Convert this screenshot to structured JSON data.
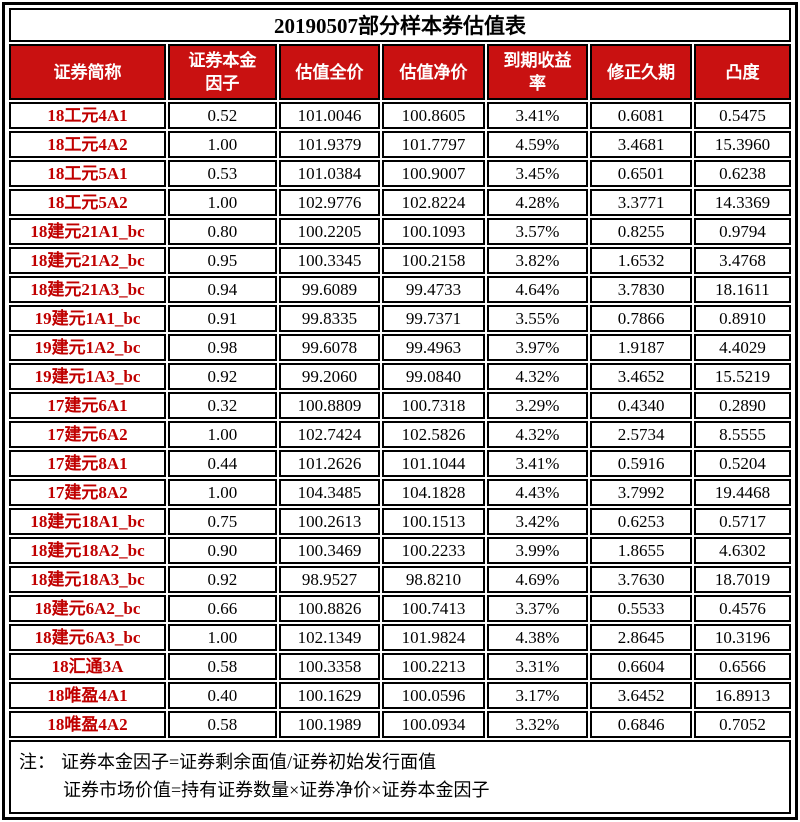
{
  "title": "20190507部分样本券估值表",
  "table": {
    "headers": [
      "证券简称",
      "证券本金\n因子",
      "估值全价",
      "估值净价",
      "到期收益\n率",
      "修正久期",
      "凸度"
    ],
    "rows": [
      [
        "18工元4A1",
        "0.52",
        "101.0046",
        "100.8605",
        "3.41%",
        "0.6081",
        "0.5475"
      ],
      [
        "18工元4A2",
        "1.00",
        "101.9379",
        "101.7797",
        "4.59%",
        "3.4681",
        "15.3960"
      ],
      [
        "18工元5A1",
        "0.53",
        "101.0384",
        "100.9007",
        "3.45%",
        "0.6501",
        "0.6238"
      ],
      [
        "18工元5A2",
        "1.00",
        "102.9776",
        "102.8224",
        "4.28%",
        "3.3771",
        "14.3369"
      ],
      [
        "18建元21A1_bc",
        "0.80",
        "100.2205",
        "100.1093",
        "3.57%",
        "0.8255",
        "0.9794"
      ],
      [
        "18建元21A2_bc",
        "0.95",
        "100.3345",
        "100.2158",
        "3.82%",
        "1.6532",
        "3.4768"
      ],
      [
        "18建元21A3_bc",
        "0.94",
        "99.6089",
        "99.4733",
        "4.64%",
        "3.7830",
        "18.1611"
      ],
      [
        "19建元1A1_bc",
        "0.91",
        "99.8335",
        "99.7371",
        "3.55%",
        "0.7866",
        "0.8910"
      ],
      [
        "19建元1A2_bc",
        "0.98",
        "99.6078",
        "99.4963",
        "3.97%",
        "1.9187",
        "4.4029"
      ],
      [
        "19建元1A3_bc",
        "0.92",
        "99.2060",
        "99.0840",
        "4.32%",
        "3.4652",
        "15.5219"
      ],
      [
        "17建元6A1",
        "0.32",
        "100.8809",
        "100.7318",
        "3.29%",
        "0.4340",
        "0.2890"
      ],
      [
        "17建元6A2",
        "1.00",
        "102.7424",
        "102.5826",
        "4.32%",
        "2.5734",
        "8.5555"
      ],
      [
        "17建元8A1",
        "0.44",
        "101.2626",
        "101.1044",
        "3.41%",
        "0.5916",
        "0.5204"
      ],
      [
        "17建元8A2",
        "1.00",
        "104.3485",
        "104.1828",
        "4.43%",
        "3.7992",
        "19.4468"
      ],
      [
        "18建元18A1_bc",
        "0.75",
        "100.2613",
        "100.1513",
        "3.42%",
        "0.6253",
        "0.5717"
      ],
      [
        "18建元18A2_bc",
        "0.90",
        "100.3469",
        "100.2233",
        "3.99%",
        "1.8655",
        "4.6302"
      ],
      [
        "18建元18A3_bc",
        "0.92",
        "98.9527",
        "98.8210",
        "4.69%",
        "3.7630",
        "18.7019"
      ],
      [
        "18建元6A2_bc",
        "0.66",
        "100.8826",
        "100.7413",
        "3.37%",
        "0.5533",
        "0.4576"
      ],
      [
        "18建元6A3_bc",
        "1.00",
        "102.1349",
        "101.9824",
        "4.38%",
        "2.8645",
        "10.3196"
      ],
      [
        "18汇通3A",
        "0.58",
        "100.3358",
        "100.2213",
        "3.31%",
        "0.6604",
        "0.6566"
      ],
      [
        "18唯盈4A1",
        "0.40",
        "100.1629",
        "100.0596",
        "3.17%",
        "3.6452",
        "16.8913"
      ],
      [
        "18唯盈4A2",
        "0.58",
        "100.1989",
        "100.0934",
        "3.32%",
        "0.6846",
        "0.7052"
      ]
    ]
  },
  "notes": {
    "prefix": "注：",
    "line1": "证券本金因子=证券剩余面值/证券初始发行面值",
    "line2": "证券市场价值=持有证券数量×证券净价×证券本金因子"
  },
  "colors": {
    "header_bg": "#C91111",
    "name_red": "#C00000",
    "border_color": "#000000"
  }
}
